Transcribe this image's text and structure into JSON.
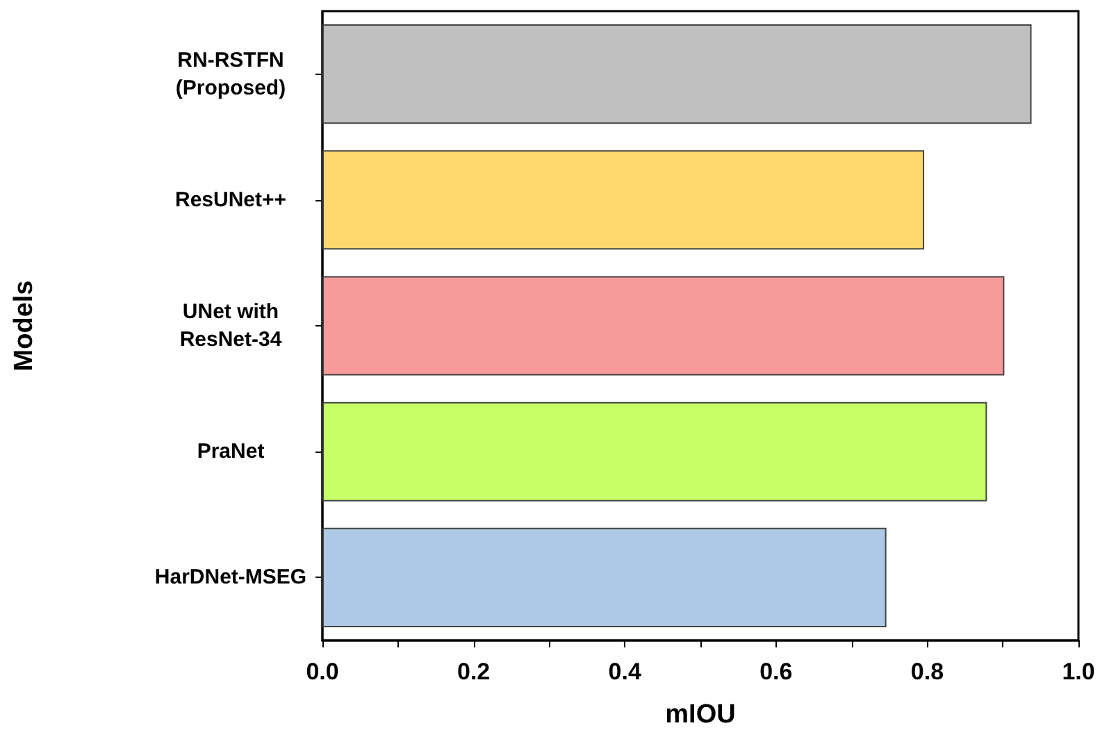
{
  "chart_data": {
    "type": "bar",
    "orientation": "horizontal",
    "xlabel": "mIOU",
    "ylabel": "Models",
    "categories": [
      "RN-RSTFN\n(Proposed)",
      "ResUNet++",
      "UNet with\nResNet-34",
      "PraNet",
      "HarDNet-MSEG"
    ],
    "values": [
      0.938,
      0.796,
      0.902,
      0.879,
      0.746
    ],
    "colors": [
      "#c0c0c0",
      "#ffd970",
      "#f79a9a",
      "#c6ff66",
      "#adc9e5"
    ],
    "xlim": [
      0,
      1.0
    ],
    "xticks": [
      {
        "value": 0,
        "label": "0.0"
      },
      {
        "value": 0.1,
        "label": null
      },
      {
        "value": 0.2,
        "label": "0.2"
      },
      {
        "value": 0.3,
        "label": null
      },
      {
        "value": 0.4,
        "label": "0.4"
      },
      {
        "value": 0.5,
        "label": null
      },
      {
        "value": 0.6,
        "label": "0.6"
      },
      {
        "value": 0.7,
        "label": null
      },
      {
        "value": 0.8,
        "label": "0.8"
      },
      {
        "value": 0.9,
        "label": null
      },
      {
        "value": 1.0,
        "label": "1.0"
      }
    ]
  }
}
